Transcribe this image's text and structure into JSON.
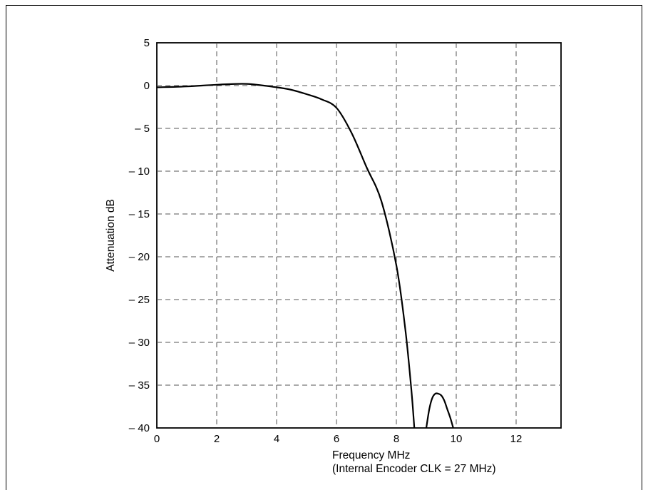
{
  "chart_data": {
    "type": "line",
    "xlabel": "Frequency MHz",
    "xlabel_note": "(Internal Encoder CLK = 27 MHz)",
    "ylabel": "Attenuation dB",
    "xlim": [
      0,
      13.5
    ],
    "ylim": [
      -40,
      5
    ],
    "x_ticks": [
      0,
      2,
      4,
      6,
      8,
      10,
      12
    ],
    "x_tick_labels": [
      "0",
      "2",
      "4",
      "6",
      "8",
      "10",
      "12"
    ],
    "y_ticks": [
      5,
      0,
      -5,
      -10,
      -15,
      -20,
      -25,
      -30,
      -35,
      -40
    ],
    "y_tick_labels": [
      "5",
      "0",
      "– 5",
      "– 10",
      "– 15",
      "– 20",
      "– 25",
      "– 30",
      "– 35",
      "– 40"
    ],
    "grid": true,
    "grid_style": "dashed",
    "line_color": "#000000",
    "series": [
      {
        "x": [
          0,
          1,
          2,
          3,
          4,
          4.5,
          5,
          5.5,
          6,
          6.5,
          7,
          7.5,
          8,
          8.3,
          8.5,
          8.6
        ],
        "y": [
          -0.2,
          -0.1,
          0.1,
          0.2,
          -0.2,
          -0.5,
          -1.0,
          -1.6,
          -2.6,
          -5.5,
          -9.5,
          -13.5,
          -21.0,
          -28.5,
          -35.5,
          -40.0
        ]
      },
      {
        "x": [
          9.0,
          9.1,
          9.2,
          9.3,
          9.4,
          9.5,
          9.6,
          9.7,
          9.8,
          9.9
        ],
        "y": [
          -40.0,
          -37.8,
          -36.5,
          -36.0,
          -36.0,
          -36.2,
          -36.8,
          -37.8,
          -38.8,
          -40.0
        ]
      }
    ]
  }
}
